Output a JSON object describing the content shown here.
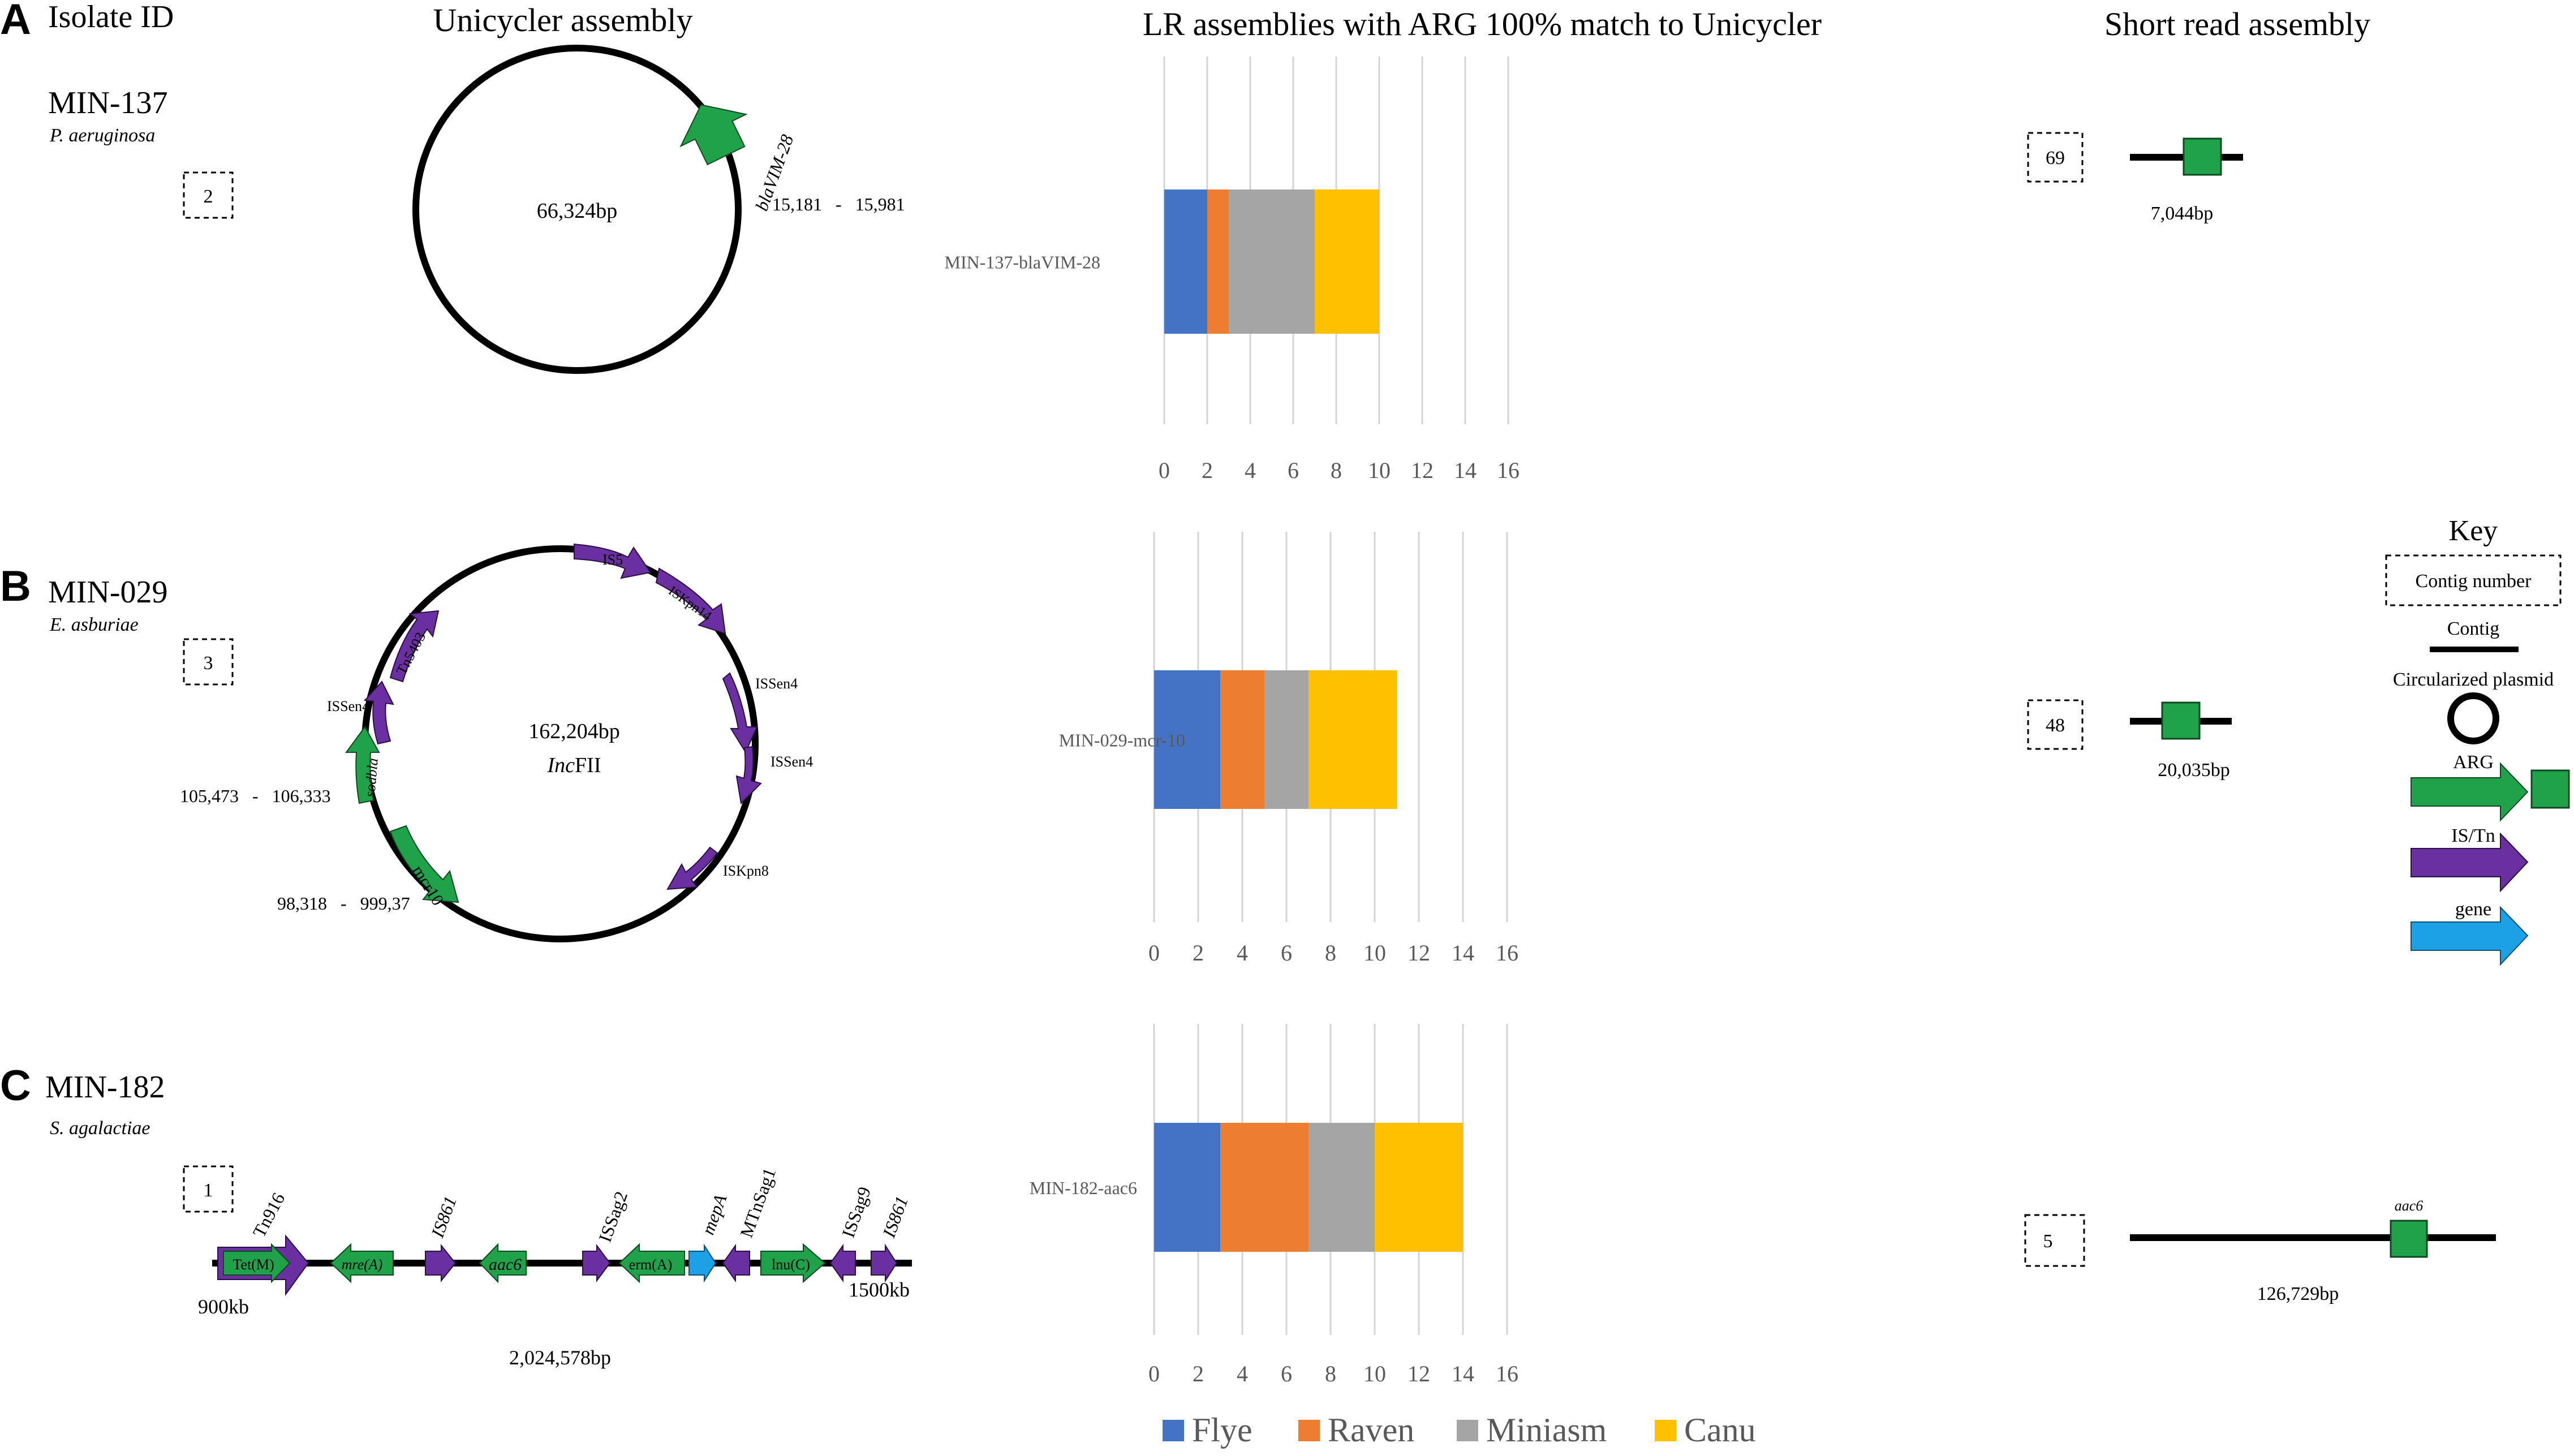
{
  "headers": {
    "isolate_id": "Isolate ID",
    "unicycler": "Unicycler assembly",
    "lr": "LR assemblies with ARG 100% match to Unicycler",
    "short_read": "Short read assembly"
  },
  "panels": [
    {
      "letter": "A",
      "isolate": "MIN-137",
      "species": "P. aeruginosa",
      "contig_num": "2",
      "plasmid": {
        "size": "66,324bp",
        "features": [
          {
            "label": "blaVIM-28",
            "type": "ARG",
            "coords": "15,181   -   15,981"
          }
        ]
      },
      "short_read": {
        "contig_num": "69",
        "length": "7,044bp"
      }
    },
    {
      "letter": "B",
      "isolate": "MIN-029",
      "species": "E. asburiae",
      "contig_num": "3",
      "plasmid": {
        "size": "162,204bp",
        "inc_italic": "Inc",
        "inc_rest": "FII",
        "features": [
          {
            "label": "IS5",
            "type": "IS"
          },
          {
            "label": "ISKpn14",
            "type": "IS"
          },
          {
            "label": "ISSen4",
            "type": "IS"
          },
          {
            "label": "ISSen4",
            "type": "IS"
          },
          {
            "label": "ISKpn8",
            "type": "IS"
          },
          {
            "label": "mcr10",
            "type": "ARG",
            "coords": "98,318   -   999,37"
          },
          {
            "label": "sodbla",
            "type": "ARG",
            "coords": "105,473   -   106,333"
          },
          {
            "label": "ISSen4",
            "type": "IS"
          },
          {
            "label": "Tn5403",
            "type": "IS"
          }
        ]
      },
      "short_read": {
        "contig_num": "48",
        "length": "20,035bp"
      }
    },
    {
      "letter": "C",
      "isolate": "MIN-182",
      "species": "S. agalactiae",
      "contig_num": "1",
      "linear": {
        "size": "2,024,578bp",
        "start": "900kb",
        "end": "1500kb",
        "features": [
          {
            "label": "Tet(M)",
            "type": "ARG",
            "inside": true
          },
          {
            "label": "Tn916",
            "type": "IS"
          },
          {
            "label": "mre(A)",
            "type": "ARG",
            "inside": true
          },
          {
            "label": "IS861",
            "type": "IS"
          },
          {
            "label": "aac6",
            "type": "ARG",
            "inside": true,
            "italic": true
          },
          {
            "label": "ISSag2",
            "type": "IS"
          },
          {
            "label": "erm(A)",
            "type": "ARG",
            "inside": true
          },
          {
            "label": "mepA",
            "type": "gene"
          },
          {
            "label": "MTnSag1",
            "type": "IS"
          },
          {
            "label": "lnu(C)",
            "type": "ARG",
            "inside": true
          },
          {
            "label": "ISSag9",
            "type": "IS"
          },
          {
            "label": "IS861",
            "type": "IS"
          }
        ]
      },
      "short_read": {
        "contig_num": "5",
        "length": "126,729bp",
        "gene": "aac6"
      }
    }
  ],
  "chart_data": [
    {
      "type": "bar",
      "orientation": "horizontal",
      "stacked": true,
      "categories": [
        "MIN-137-blaVIM-28"
      ],
      "series": [
        {
          "name": "Flye",
          "values": [
            2
          ]
        },
        {
          "name": "Raven",
          "values": [
            1
          ]
        },
        {
          "name": "Miniasm",
          "values": [
            4
          ]
        },
        {
          "name": "Canu",
          "values": [
            3
          ]
        }
      ],
      "xlim": [
        0,
        16
      ],
      "xticks": [
        "0",
        "2",
        "4",
        "6",
        "8",
        "10",
        "12",
        "14",
        "16"
      ],
      "grid": true
    },
    {
      "type": "bar",
      "orientation": "horizontal",
      "stacked": true,
      "categories": [
        "MIN-029-mcr-10"
      ],
      "series": [
        {
          "name": "Flye",
          "values": [
            3
          ]
        },
        {
          "name": "Raven",
          "values": [
            2
          ]
        },
        {
          "name": "Miniasm",
          "values": [
            2
          ]
        },
        {
          "name": "Canu",
          "values": [
            4
          ]
        }
      ],
      "xlim": [
        0,
        16
      ],
      "xticks": [
        "0",
        "2",
        "4",
        "6",
        "8",
        "10",
        "12",
        "14",
        "16"
      ],
      "grid": true
    },
    {
      "type": "bar",
      "orientation": "horizontal",
      "stacked": true,
      "categories": [
        "MIN-182-aac6"
      ],
      "series": [
        {
          "name": "Flye",
          "values": [
            3
          ]
        },
        {
          "name": "Raven",
          "values": [
            4
          ]
        },
        {
          "name": "Miniasm",
          "values": [
            3
          ]
        },
        {
          "name": "Canu",
          "values": [
            4
          ]
        }
      ],
      "xlim": [
        0,
        16
      ],
      "xticks": [
        "0",
        "2",
        "4",
        "6",
        "8",
        "10",
        "12",
        "14",
        "16"
      ],
      "grid": true
    }
  ],
  "legend": [
    {
      "name": "Flye",
      "color": "#4472C4"
    },
    {
      "name": "Raven",
      "color": "#ED7D31"
    },
    {
      "name": "Miniasm",
      "color": "#A5A5A5"
    },
    {
      "name": "Canu",
      "color": "#FFC000"
    }
  ],
  "key": {
    "title": "Key",
    "contig_number": "Contig number",
    "contig": "Contig",
    "plasmid": "Circularized plasmid",
    "arg": "ARG",
    "is_tn": "IS/Tn",
    "gene": "gene"
  },
  "colors": {
    "arg": "#1FA24A",
    "is": "#6A2FA0",
    "gene": "#1CA0E6",
    "line": "#000000"
  }
}
